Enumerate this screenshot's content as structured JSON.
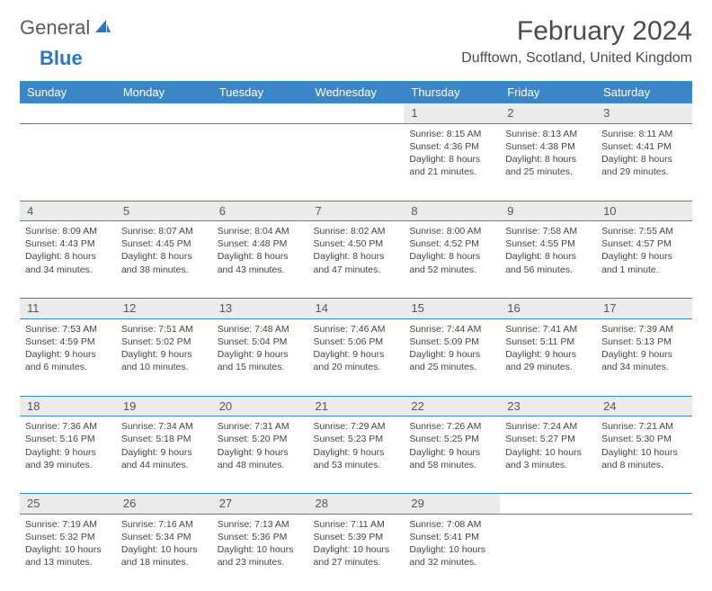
{
  "logo": {
    "text1": "General",
    "text2": "Blue",
    "icon_color": "#2b78bf"
  },
  "title": "February 2024",
  "location": "Dufftown, Scotland, United Kingdom",
  "header_bg": "#3a87c7",
  "daynum_bg": "#ebebeb",
  "weekdays": [
    "Sunday",
    "Monday",
    "Tuesday",
    "Wednesday",
    "Thursday",
    "Friday",
    "Saturday"
  ],
  "weeks": [
    [
      null,
      null,
      null,
      null,
      {
        "num": "1",
        "sunrise": "Sunrise: 8:15 AM",
        "sunset": "Sunset: 4:36 PM",
        "day1": "Daylight: 8 hours",
        "day2": "and 21 minutes."
      },
      {
        "num": "2",
        "sunrise": "Sunrise: 8:13 AM",
        "sunset": "Sunset: 4:38 PM",
        "day1": "Daylight: 8 hours",
        "day2": "and 25 minutes."
      },
      {
        "num": "3",
        "sunrise": "Sunrise: 8:11 AM",
        "sunset": "Sunset: 4:41 PM",
        "day1": "Daylight: 8 hours",
        "day2": "and 29 minutes."
      }
    ],
    [
      {
        "num": "4",
        "sunrise": "Sunrise: 8:09 AM",
        "sunset": "Sunset: 4:43 PM",
        "day1": "Daylight: 8 hours",
        "day2": "and 34 minutes."
      },
      {
        "num": "5",
        "sunrise": "Sunrise: 8:07 AM",
        "sunset": "Sunset: 4:45 PM",
        "day1": "Daylight: 8 hours",
        "day2": "and 38 minutes."
      },
      {
        "num": "6",
        "sunrise": "Sunrise: 8:04 AM",
        "sunset": "Sunset: 4:48 PM",
        "day1": "Daylight: 8 hours",
        "day2": "and 43 minutes."
      },
      {
        "num": "7",
        "sunrise": "Sunrise: 8:02 AM",
        "sunset": "Sunset: 4:50 PM",
        "day1": "Daylight: 8 hours",
        "day2": "and 47 minutes."
      },
      {
        "num": "8",
        "sunrise": "Sunrise: 8:00 AM",
        "sunset": "Sunset: 4:52 PM",
        "day1": "Daylight: 8 hours",
        "day2": "and 52 minutes."
      },
      {
        "num": "9",
        "sunrise": "Sunrise: 7:58 AM",
        "sunset": "Sunset: 4:55 PM",
        "day1": "Daylight: 8 hours",
        "day2": "and 56 minutes."
      },
      {
        "num": "10",
        "sunrise": "Sunrise: 7:55 AM",
        "sunset": "Sunset: 4:57 PM",
        "day1": "Daylight: 9 hours",
        "day2": "and 1 minute."
      }
    ],
    [
      {
        "num": "11",
        "sunrise": "Sunrise: 7:53 AM",
        "sunset": "Sunset: 4:59 PM",
        "day1": "Daylight: 9 hours",
        "day2": "and 6 minutes."
      },
      {
        "num": "12",
        "sunrise": "Sunrise: 7:51 AM",
        "sunset": "Sunset: 5:02 PM",
        "day1": "Daylight: 9 hours",
        "day2": "and 10 minutes."
      },
      {
        "num": "13",
        "sunrise": "Sunrise: 7:48 AM",
        "sunset": "Sunset: 5:04 PM",
        "day1": "Daylight: 9 hours",
        "day2": "and 15 minutes."
      },
      {
        "num": "14",
        "sunrise": "Sunrise: 7:46 AM",
        "sunset": "Sunset: 5:06 PM",
        "day1": "Daylight: 9 hours",
        "day2": "and 20 minutes."
      },
      {
        "num": "15",
        "sunrise": "Sunrise: 7:44 AM",
        "sunset": "Sunset: 5:09 PM",
        "day1": "Daylight: 9 hours",
        "day2": "and 25 minutes."
      },
      {
        "num": "16",
        "sunrise": "Sunrise: 7:41 AM",
        "sunset": "Sunset: 5:11 PM",
        "day1": "Daylight: 9 hours",
        "day2": "and 29 minutes."
      },
      {
        "num": "17",
        "sunrise": "Sunrise: 7:39 AM",
        "sunset": "Sunset: 5:13 PM",
        "day1": "Daylight: 9 hours",
        "day2": "and 34 minutes."
      }
    ],
    [
      {
        "num": "18",
        "sunrise": "Sunrise: 7:36 AM",
        "sunset": "Sunset: 5:16 PM",
        "day1": "Daylight: 9 hours",
        "day2": "and 39 minutes."
      },
      {
        "num": "19",
        "sunrise": "Sunrise: 7:34 AM",
        "sunset": "Sunset: 5:18 PM",
        "day1": "Daylight: 9 hours",
        "day2": "and 44 minutes."
      },
      {
        "num": "20",
        "sunrise": "Sunrise: 7:31 AM",
        "sunset": "Sunset: 5:20 PM",
        "day1": "Daylight: 9 hours",
        "day2": "and 48 minutes."
      },
      {
        "num": "21",
        "sunrise": "Sunrise: 7:29 AM",
        "sunset": "Sunset: 5:23 PM",
        "day1": "Daylight: 9 hours",
        "day2": "and 53 minutes."
      },
      {
        "num": "22",
        "sunrise": "Sunrise: 7:26 AM",
        "sunset": "Sunset: 5:25 PM",
        "day1": "Daylight: 9 hours",
        "day2": "and 58 minutes."
      },
      {
        "num": "23",
        "sunrise": "Sunrise: 7:24 AM",
        "sunset": "Sunset: 5:27 PM",
        "day1": "Daylight: 10 hours",
        "day2": "and 3 minutes."
      },
      {
        "num": "24",
        "sunrise": "Sunrise: 7:21 AM",
        "sunset": "Sunset: 5:30 PM",
        "day1": "Daylight: 10 hours",
        "day2": "and 8 minutes."
      }
    ],
    [
      {
        "num": "25",
        "sunrise": "Sunrise: 7:19 AM",
        "sunset": "Sunset: 5:32 PM",
        "day1": "Daylight: 10 hours",
        "day2": "and 13 minutes."
      },
      {
        "num": "26",
        "sunrise": "Sunrise: 7:16 AM",
        "sunset": "Sunset: 5:34 PM",
        "day1": "Daylight: 10 hours",
        "day2": "and 18 minutes."
      },
      {
        "num": "27",
        "sunrise": "Sunrise: 7:13 AM",
        "sunset": "Sunset: 5:36 PM",
        "day1": "Daylight: 10 hours",
        "day2": "and 23 minutes."
      },
      {
        "num": "28",
        "sunrise": "Sunrise: 7:11 AM",
        "sunset": "Sunset: 5:39 PM",
        "day1": "Daylight: 10 hours",
        "day2": "and 27 minutes."
      },
      {
        "num": "29",
        "sunrise": "Sunrise: 7:08 AM",
        "sunset": "Sunset: 5:41 PM",
        "day1": "Daylight: 10 hours",
        "day2": "and 32 minutes."
      },
      null,
      null
    ]
  ]
}
